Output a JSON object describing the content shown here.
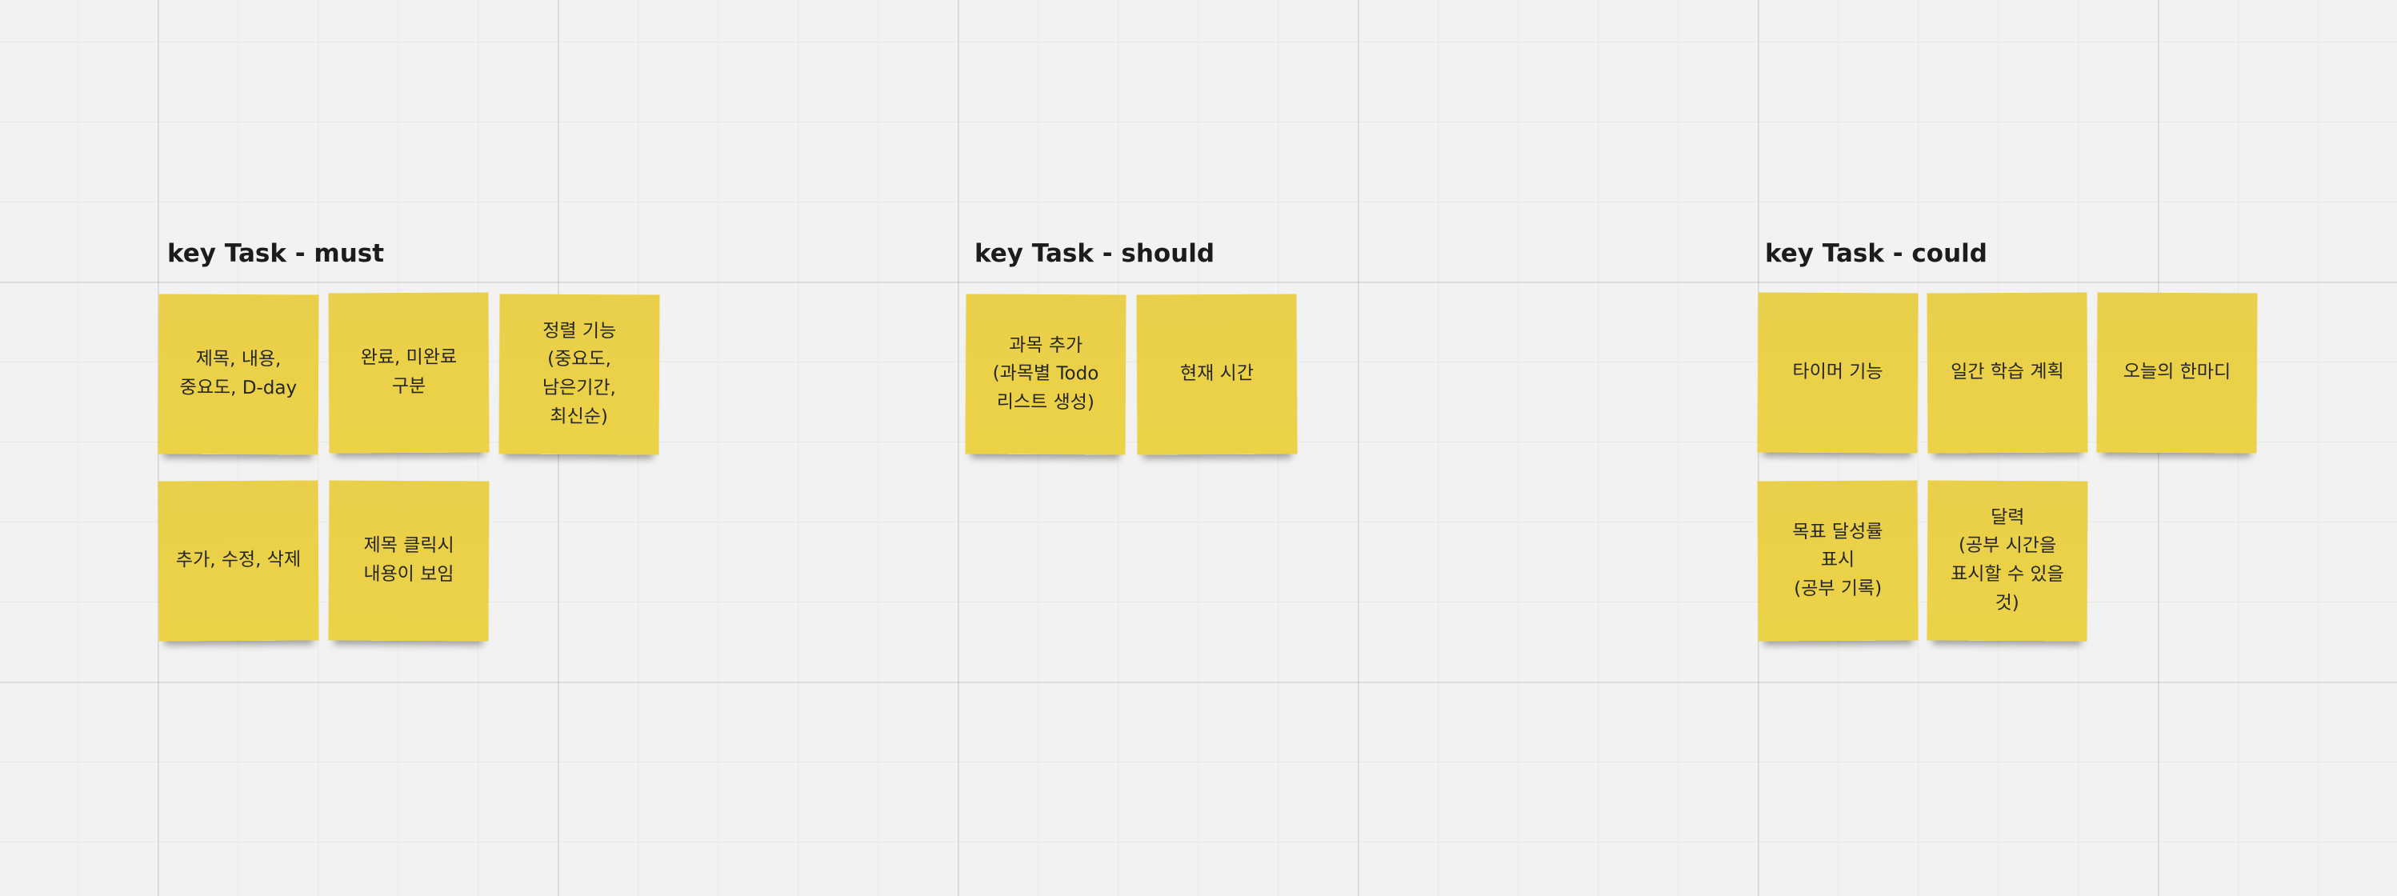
{
  "sections": [
    {
      "title": "key Task - must",
      "notes": [
        "제목, 내용,\n중요도, D-day",
        "완료, 미완료\n구분",
        "정렬 기능\n(중요도,\n남은기간,\n최신순)",
        "추가, 수정, 삭제",
        "제목 클릭시\n내용이 보임"
      ]
    },
    {
      "title": "key Task - should",
      "notes": [
        "과목 추가\n(과목별 Todo\n리스트 생성)",
        "현재 시간"
      ]
    },
    {
      "title": "key Task - could",
      "notes": [
        "타이머 기능",
        "일간 학습 계획",
        "오늘의 한마디",
        "목표 달성률\n표시\n(공부 기록)",
        "달력\n(공부 시간을\n표시할 수 있을\n것)"
      ]
    }
  ],
  "colors": {
    "board_background": "#f2f2f2",
    "sticky_note": "#ecd247",
    "title_text": "#1c1c1c"
  }
}
